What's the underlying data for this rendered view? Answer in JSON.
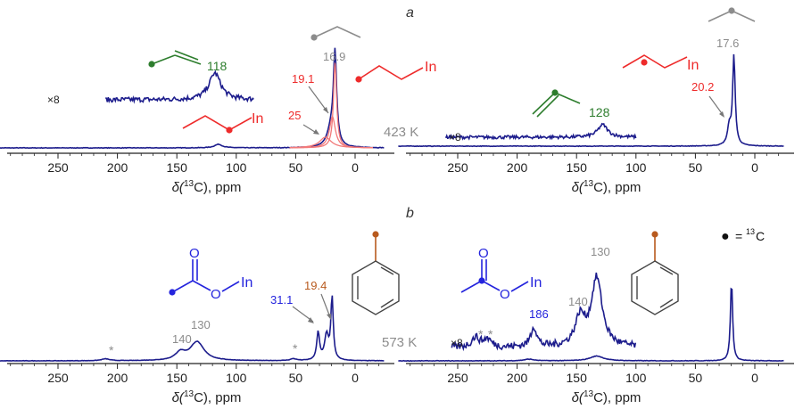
{
  "panel_labels": {
    "a": "a",
    "b": "b"
  },
  "legend": {
    "symbol": "●",
    "equals": "=",
    "isotope_sup": "13",
    "element": "C"
  },
  "colors": {
    "spectrum": "#1c1c8c",
    "fit": "#f27a7a",
    "red": "#ee2b2b",
    "green": "#2d7d2d",
    "gray": "#8c8c8c",
    "blue": "#2424dd",
    "brown": "#b85a1e",
    "dark": "#333333"
  },
  "axis": {
    "ticks": [
      250,
      200,
      150,
      100,
      50,
      0
    ],
    "tick_labels": [
      "250",
      "200",
      "150",
      "100",
      "50",
      "0"
    ],
    "xlabel_prefix": "δ(",
    "xlabel_sup": "13",
    "xlabel_suffix": "C), ppm"
  },
  "text": {
    "temp_a": "423 K",
    "temp_b": "573 K",
    "x8": "×8",
    "in": "In",
    "o": "O",
    "star": "*"
  },
  "chart_data": [
    {
      "type": "line",
      "panel": "a-left",
      "xlabel": "δ(13C), ppm",
      "xlim": [
        300,
        -25
      ],
      "peak_labels": [
        {
          "text": "16.9",
          "x": 16.9,
          "color": "gray"
        },
        {
          "text": "19.1",
          "x": 19.1,
          "color": "red"
        },
        {
          "text": "25",
          "x": 25,
          "color": "red"
        },
        {
          "text": "118",
          "x": 118,
          "color": "green"
        }
      ],
      "annotation": "423 K",
      "inset_scale": "×8",
      "series": [
        {
          "role": "spectrum",
          "peaks": [
            {
              "x": 16.9,
              "height": 1.0
            },
            {
              "x": 20,
              "height": 0.2
            },
            {
              "x": 115,
              "height": 0.04
            }
          ]
        },
        {
          "role": "spectrum-x8",
          "xrange": [
            210,
            85
          ],
          "peaks": [
            {
              "x": 118,
              "height": 0.5
            }
          ]
        }
      ]
    },
    {
      "type": "line",
      "panel": "a-right",
      "xlabel": "δ(13C), ppm",
      "xlim": [
        300,
        -25
      ],
      "peak_labels": [
        {
          "text": "17.6",
          "x": 17.6,
          "color": "gray"
        },
        {
          "text": "20.2",
          "x": 20.2,
          "color": "red"
        },
        {
          "text": "128",
          "x": 128,
          "color": "green"
        }
      ],
      "inset_scale": "×8",
      "series": [
        {
          "role": "spectrum",
          "peaks": [
            {
              "x": 17.6,
              "height": 1.0
            },
            {
              "x": 21.5,
              "height": 0.2
            }
          ]
        },
        {
          "role": "spectrum-x8",
          "xrange": [
            260,
            100
          ],
          "peaks": [
            {
              "x": 128,
              "height": 0.35
            }
          ]
        }
      ]
    },
    {
      "type": "line",
      "panel": "b-left",
      "xlabel": "δ(13C), ppm",
      "xlim": [
        300,
        -25
      ],
      "peak_labels": [
        {
          "text": "31.1",
          "x": 31.1,
          "color": "blue"
        },
        {
          "text": "19.4",
          "x": 19.4,
          "color": "brown"
        },
        {
          "text": "140",
          "x": 140,
          "color": "gray"
        },
        {
          "text": "130",
          "x": 130,
          "color": "gray"
        }
      ],
      "annotation": "573 K",
      "series": [
        {
          "role": "spectrum",
          "peaks": [
            {
              "x": 19.4,
              "height": 1.0
            },
            {
              "x": 24,
              "height": 0.4
            },
            {
              "x": 31.1,
              "height": 0.45
            },
            {
              "x": 133,
              "height": 0.3
            },
            {
              "x": 147,
              "height": 0.12
            },
            {
              "x": 210,
              "height": 0.03
            },
            {
              "x": 52,
              "height": 0.03
            }
          ]
        }
      ]
    },
    {
      "type": "line",
      "panel": "b-right",
      "xlabel": "δ(13C), ppm",
      "xlim": [
        300,
        -25
      ],
      "peak_labels": [
        {
          "text": "186",
          "x": 186,
          "color": "blue"
        },
        {
          "text": "140",
          "x": 140,
          "color": "gray"
        },
        {
          "text": "130",
          "x": 130,
          "color": "gray"
        }
      ],
      "inset_scale": "×8",
      "series": [
        {
          "role": "spectrum",
          "peaks": [
            {
              "x": 19.6,
              "height": 1.0
            },
            {
              "x": 133,
              "height": 0.06
            },
            {
              "x": 190,
              "height": 0.02
            }
          ]
        },
        {
          "role": "spectrum-x8",
          "xrange": [
            255,
            100
          ],
          "peaks": [
            {
              "x": 133,
              "height": 0.85
            },
            {
              "x": 147,
              "height": 0.35
            },
            {
              "x": 186,
              "height": 0.25
            },
            {
              "x": 235,
              "height": 0.12
            },
            {
              "x": 225,
              "height": 0.1
            }
          ]
        }
      ]
    }
  ]
}
